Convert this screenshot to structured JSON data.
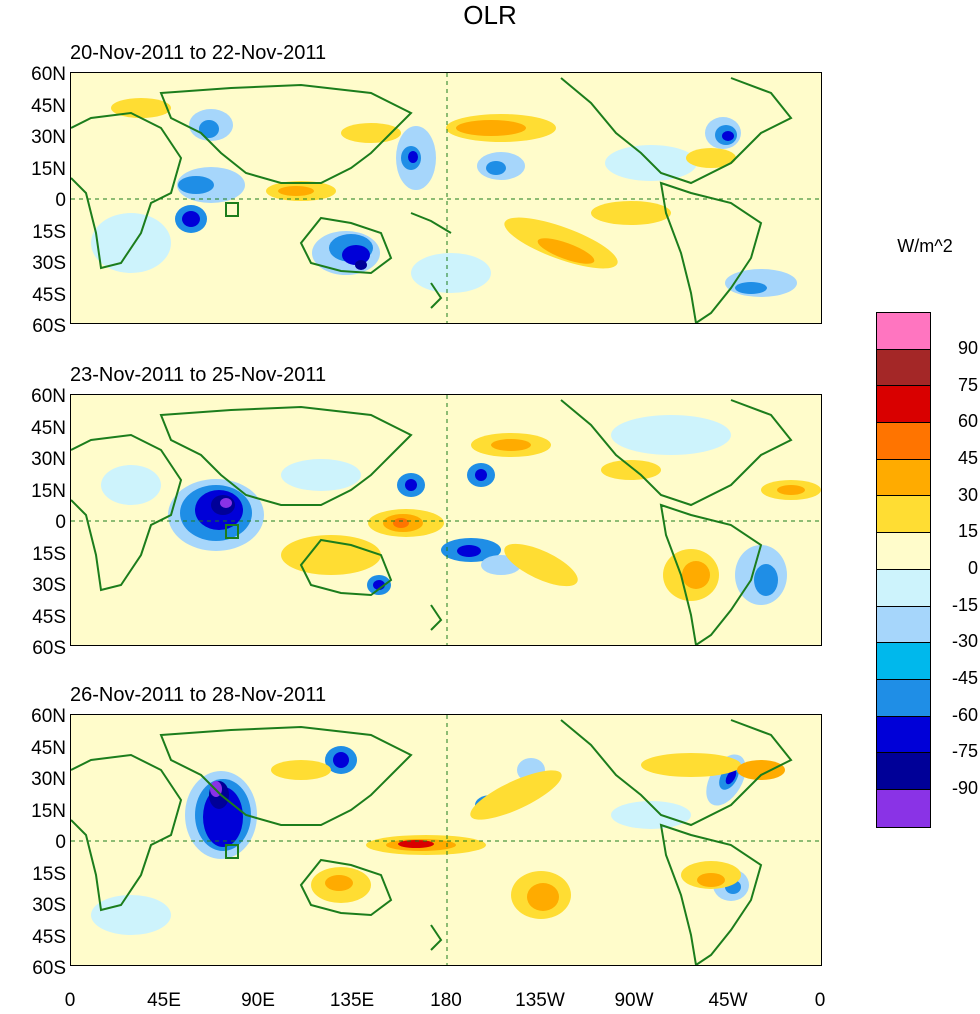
{
  "figure": {
    "title": "OLR"
  },
  "panels": [
    {
      "label": "20-Nov-2011 to 22-Nov-2011"
    },
    {
      "label": "23-Nov-2011 to 25-Nov-2011"
    },
    {
      "label": "26-Nov-2011 to 28-Nov-2011"
    }
  ],
  "axes": {
    "lat_labels": [
      "60N",
      "45N",
      "30N",
      "15N",
      "0",
      "15S",
      "30S",
      "45S",
      "60S"
    ],
    "lon_labels": [
      "0",
      "45E",
      "90E",
      "135E",
      "180",
      "135W",
      "90W",
      "45W",
      "0"
    ]
  },
  "colorbar": {
    "units": "W/m^2",
    "labels": [
      "90",
      "75",
      "60",
      "45",
      "30",
      "15",
      "0",
      "-15",
      "-30",
      "-45",
      "-60",
      "-75",
      "-90"
    ],
    "colors": [
      "#ff75c0",
      "#a42727",
      "#d90000",
      "#ff7400",
      "#ffab00",
      "#ffdd33",
      "#fffccb",
      "#cdf3fc",
      "#a6d6fb",
      "#00b8ec",
      "#1f8ee6",
      "#0000d8",
      "#000098",
      "#8a33e6"
    ]
  },
  "map_colors": {
    "coast": "#1c7d1c",
    "equator_line": "#1c7d1c",
    "frame": "#000000"
  }
}
